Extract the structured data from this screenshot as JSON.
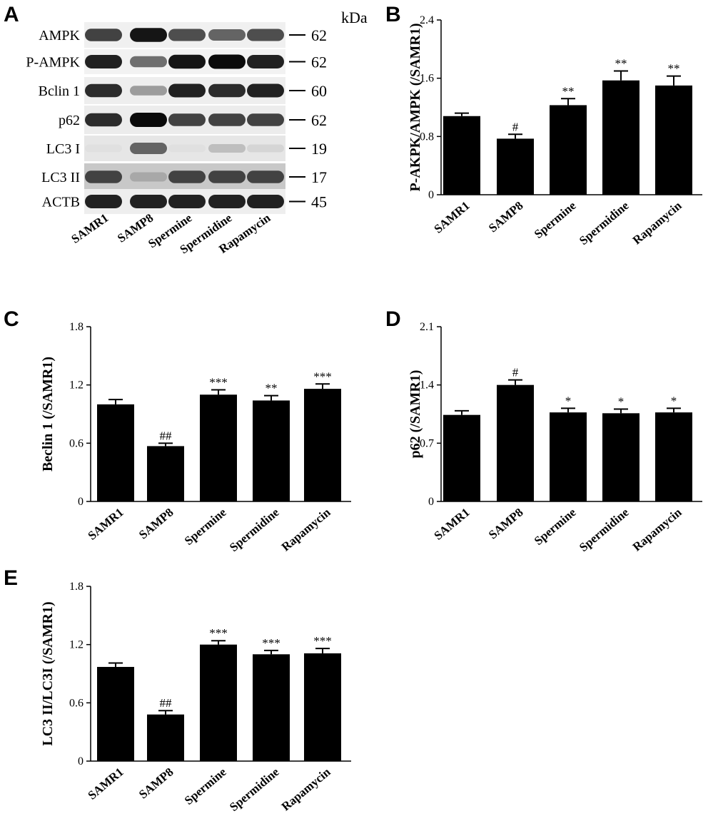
{
  "western_blot": {
    "panel": "A",
    "unit": "kDa",
    "lanes": [
      "SAMR1",
      "SAMP8",
      "Spermine",
      "Spermidine",
      "Rapamycin"
    ],
    "rows": [
      {
        "label": "AMPK",
        "kda": "62",
        "intensity": [
          0.75,
          0.95,
          0.7,
          0.6,
          0.7
        ],
        "bg": "#f0f0f0"
      },
      {
        "label": "P-AMPK",
        "kda": "62",
        "intensity": [
          0.9,
          0.55,
          0.95,
          1.0,
          0.9
        ],
        "bg": "#f2f2f2"
      },
      {
        "label": "Bclin 1",
        "kda": "60",
        "intensity": [
          0.85,
          0.35,
          0.9,
          0.85,
          0.9
        ],
        "bg": "#eeeeee"
      },
      {
        "label": "p62",
        "kda": "62",
        "intensity": [
          0.85,
          1.0,
          0.75,
          0.75,
          0.75
        ],
        "bg": "#ececec"
      },
      {
        "label": "LC3 I",
        "kda": "19",
        "intensity": [
          0.05,
          0.6,
          0.05,
          0.2,
          0.1
        ],
        "bg": "#e6e6e6"
      },
      {
        "label": "LC3 II",
        "kda": "17",
        "intensity": [
          0.75,
          0.3,
          0.75,
          0.75,
          0.75
        ],
        "bg": "#c8c8c8"
      },
      {
        "label": "ACTB",
        "kda": "45",
        "intensity": [
          0.9,
          0.9,
          0.9,
          0.9,
          0.9
        ],
        "bg": "#eeeeee"
      }
    ]
  },
  "chart_data": [
    {
      "panel": "B",
      "type": "bar",
      "categories": [
        "SAMR1",
        "SAMP8",
        "Spermine",
        "Spermidine",
        "Rapamycin"
      ],
      "values": [
        1.08,
        0.77,
        1.23,
        1.57,
        1.5
      ],
      "errors": [
        0.04,
        0.06,
        0.09,
        0.13,
        0.13
      ],
      "significance": [
        "",
        "#",
        "**",
        "**",
        "**"
      ],
      "ylabel": "P-AKPK/AMPK (/SAMR1)",
      "ylim": [
        0,
        2.4
      ],
      "yticks": [
        0,
        0.8,
        1.6,
        2.4
      ],
      "ytick_labels": [
        "0",
        "0.8",
        "1.6",
        "2.4"
      ]
    },
    {
      "panel": "C",
      "type": "bar",
      "categories": [
        "SAMR1",
        "SAMP8",
        "Spermine",
        "Spermidine",
        "Rapamycin"
      ],
      "values": [
        1.0,
        0.57,
        1.1,
        1.04,
        1.16
      ],
      "errors": [
        0.05,
        0.03,
        0.05,
        0.05,
        0.05
      ],
      "significance": [
        "",
        "##",
        "***",
        "**",
        "***"
      ],
      "ylabel": "Beclin 1 (/SAMR1)",
      "ylim": [
        0,
        1.8
      ],
      "yticks": [
        0,
        0.6,
        1.2,
        1.8
      ],
      "ytick_labels": [
        "0",
        "0.6",
        "1.2",
        "1.8"
      ]
    },
    {
      "panel": "D",
      "type": "bar",
      "categories": [
        "SAMR1",
        "SAMP8",
        "Spermine",
        "Spermidine",
        "Rapamycin"
      ],
      "values": [
        1.04,
        1.4,
        1.07,
        1.06,
        1.07
      ],
      "errors": [
        0.05,
        0.06,
        0.05,
        0.05,
        0.05
      ],
      "significance": [
        "",
        "#",
        "*",
        "*",
        "*"
      ],
      "ylabel": "p62 (/SAMR1)",
      "ylim": [
        0,
        2.1
      ],
      "yticks": [
        0,
        0.7,
        1.4,
        2.1
      ],
      "ytick_labels": [
        "0",
        "0.7",
        "1.4",
        "2.1"
      ]
    },
    {
      "panel": "E",
      "type": "bar",
      "categories": [
        "SAMR1",
        "SAMP8",
        "Spermine",
        "Spermidine",
        "Rapamycin"
      ],
      "values": [
        0.97,
        0.48,
        1.2,
        1.1,
        1.11
      ],
      "errors": [
        0.04,
        0.04,
        0.04,
        0.04,
        0.05
      ],
      "significance": [
        "",
        "##",
        "***",
        "***",
        "***"
      ],
      "ylabel": "LC3 II/LC3I (/SAMR1)",
      "ylim": [
        0,
        1.8
      ],
      "yticks": [
        0,
        0.6,
        1.2,
        1.8
      ],
      "ytick_labels": [
        "0",
        "0.6",
        "1.2",
        "1.8"
      ]
    }
  ]
}
